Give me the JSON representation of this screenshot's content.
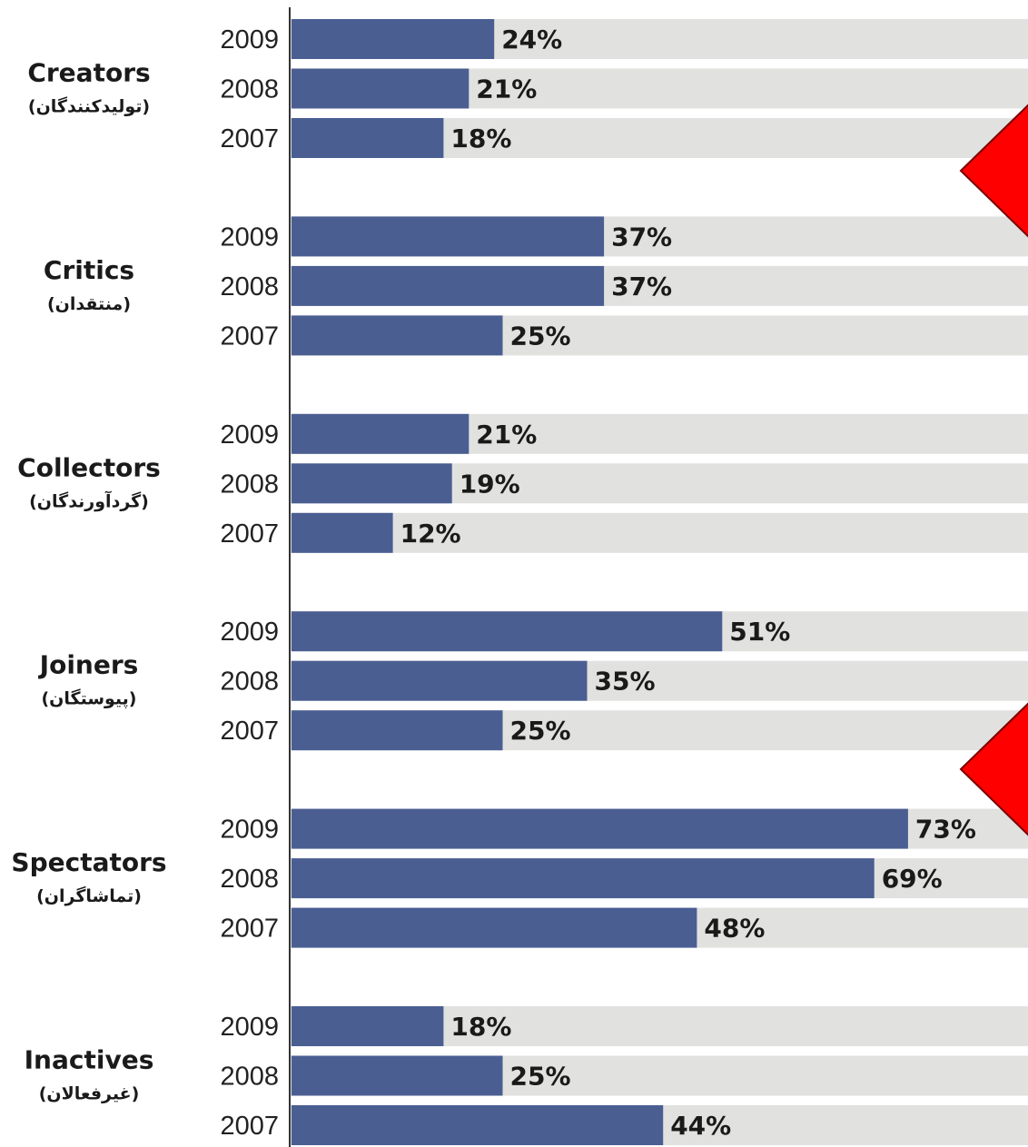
{
  "chart_data": {
    "type": "bar",
    "orientation": "horizontal",
    "value_suffix": "%",
    "xlim": [
      0,
      100
    ],
    "series_years": [
      "2009",
      "2008",
      "2007"
    ],
    "groups": [
      {
        "name": "Creators",
        "name_fa": "(تولیدکنندگان)",
        "values": {
          "2009": 24,
          "2008": 21,
          "2007": 18
        }
      },
      {
        "name": "Critics",
        "name_fa": "(منتقدان)",
        "values": {
          "2009": 37,
          "2008": 37,
          "2007": 25
        }
      },
      {
        "name": "Collectors",
        "name_fa": "(گردآورندگان)",
        "values": {
          "2009": 21,
          "2008": 19,
          "2007": 12
        }
      },
      {
        "name": "Joiners",
        "name_fa": "(پیوستگان)",
        "values": {
          "2009": 51,
          "2008": 35,
          "2007": 25
        }
      },
      {
        "name": "Spectators",
        "name_fa": "(تماشاگران)",
        "values": {
          "2009": 73,
          "2008": 69,
          "2007": 48
        }
      },
      {
        "name": "Inactives",
        "name_fa": "(غیرفعالان)",
        "values": {
          "2009": 18,
          "2008": 25,
          "2007": 44
        }
      }
    ],
    "grid": false,
    "legend": "none"
  },
  "colors": {
    "bar": "#4a5e92",
    "track": "#e1e1df",
    "axis": "#333333",
    "marker": "#ff0000"
  },
  "annotations": [
    {
      "shape": "red-triangle-marker",
      "near_group": "Creators"
    },
    {
      "shape": "red-triangle-marker",
      "near_group": "Joiners"
    }
  ]
}
